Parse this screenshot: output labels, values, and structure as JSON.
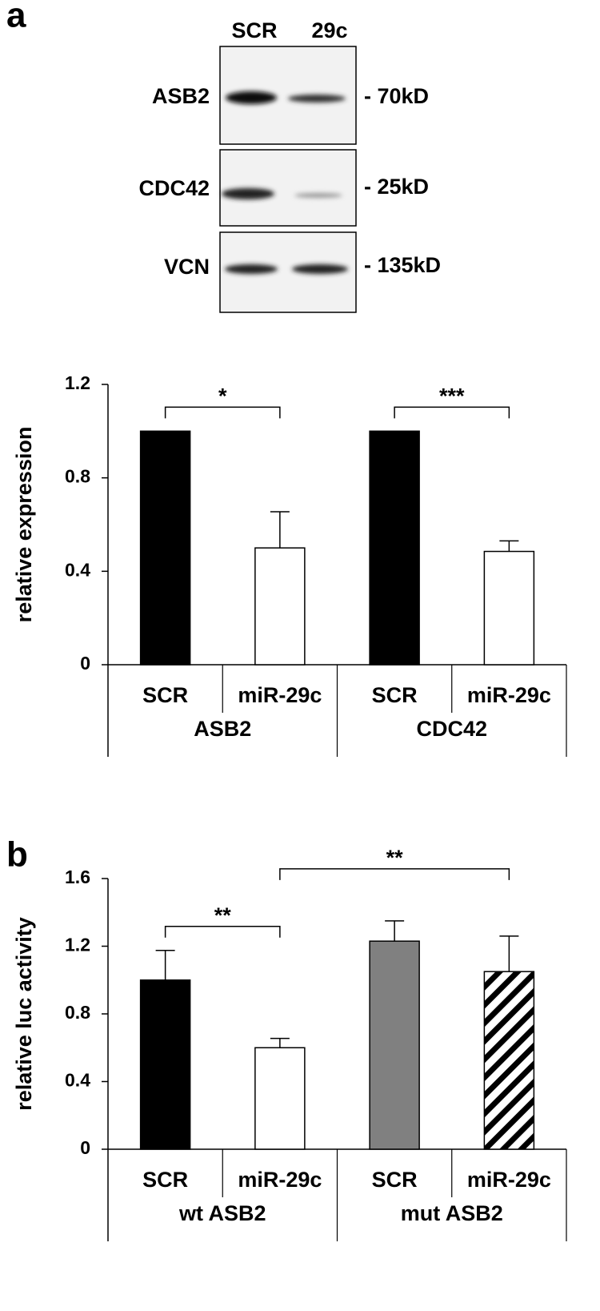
{
  "blot": {
    "panel_label": "a",
    "columns": [
      "SCR",
      "29c"
    ],
    "rows": [
      {
        "protein": "ASB2",
        "size": "- 70kD"
      },
      {
        "protein": "CDC42",
        "size": "- 25kD"
      },
      {
        "protein": "VCN",
        "size": "- 135kD"
      }
    ]
  },
  "chart_data": [
    {
      "type": "bar",
      "ylabel": "relative expression",
      "categories": [
        "SCR",
        "miR-29c",
        "SCR",
        "miR-29c"
      ],
      "groups": [
        "ASB2",
        "CDC42"
      ],
      "values": [
        1.0,
        0.5,
        1.0,
        0.485
      ],
      "errors": [
        0,
        0.155,
        0,
        0.045
      ],
      "colors": [
        "#000000",
        "#ffffff",
        "#000000",
        "#ffffff"
      ],
      "ylim": [
        0,
        1.2
      ],
      "yticks": [
        0,
        0.4,
        0.8,
        1.2
      ],
      "annotations": [
        {
          "label": "*",
          "from": 0,
          "to": 1
        },
        {
          "label": "***",
          "from": 2,
          "to": 3
        }
      ]
    },
    {
      "type": "bar",
      "panel_label": "b",
      "ylabel": "relative luc activity",
      "categories": [
        "SCR",
        "miR-29c",
        "SCR",
        "miR-29c"
      ],
      "groups": [
        "wt ASB2",
        "mut ASB2"
      ],
      "values": [
        1.0,
        0.6,
        1.23,
        1.05
      ],
      "errors": [
        0.175,
        0.055,
        0.12,
        0.21
      ],
      "colors": [
        "#000000",
        "#ffffff",
        "#808080",
        "hatched"
      ],
      "ylim": [
        0,
        1.6
      ],
      "yticks": [
        0,
        0.4,
        0.8,
        1.2,
        1.6
      ],
      "annotations": [
        {
          "label": "**",
          "from": 0,
          "to": 1
        },
        {
          "label": "**",
          "from": 1,
          "to": 3
        }
      ]
    }
  ]
}
